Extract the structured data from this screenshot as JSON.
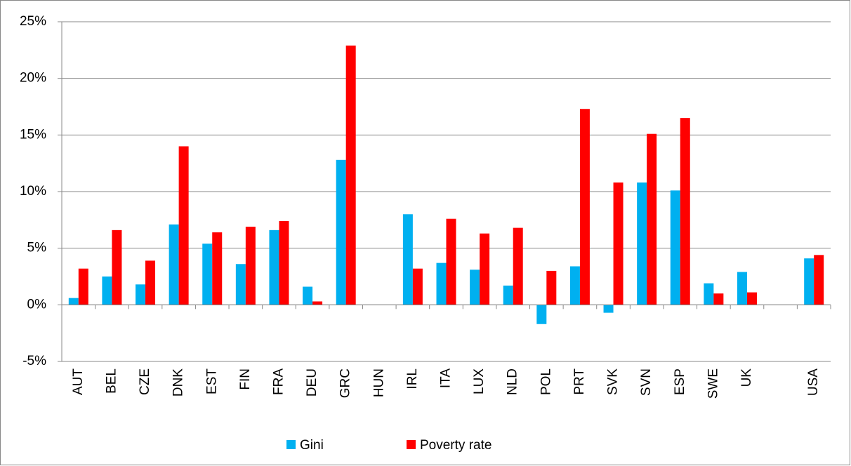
{
  "chart_data": {
    "type": "bar",
    "categories": [
      "AUT",
      "BEL",
      "CZE",
      "DNK",
      "EST",
      "FIN",
      "FRA",
      "DEU",
      "GRC",
      "HUN",
      "IRL",
      "ITA",
      "LUX",
      "NLD",
      "POL",
      "PRT",
      "SVK",
      "SVN",
      "ESP",
      "SWE",
      "UK",
      null,
      "USA"
    ],
    "series": [
      {
        "name": "Gini",
        "color": "#00b0f0",
        "values": [
          0.6,
          2.5,
          1.8,
          7.1,
          5.4,
          3.6,
          6.6,
          1.6,
          12.8,
          null,
          8.0,
          3.7,
          3.1,
          1.7,
          -1.7,
          3.4,
          -0.7,
          10.8,
          10.1,
          1.9,
          2.9,
          null,
          4.1
        ]
      },
      {
        "name": "Poverty rate",
        "color": "#ff0000",
        "values": [
          3.2,
          6.6,
          3.9,
          14.0,
          6.4,
          6.9,
          7.4,
          0.3,
          22.9,
          null,
          3.2,
          7.6,
          6.3,
          6.8,
          3.0,
          17.3,
          10.8,
          15.1,
          16.5,
          1.0,
          1.1,
          null,
          4.4
        ]
      }
    ],
    "ylim": [
      -5,
      25
    ],
    "yticks": [
      {
        "value": -5,
        "label": "-5%"
      },
      {
        "value": 0,
        "label": "0%"
      },
      {
        "value": 5,
        "label": "5%"
      },
      {
        "value": 10,
        "label": "10%"
      },
      {
        "value": 15,
        "label": "15%"
      },
      {
        "value": 20,
        "label": "20%"
      },
      {
        "value": 25,
        "label": "25%"
      }
    ],
    "grid": true,
    "legend": "bottom"
  }
}
